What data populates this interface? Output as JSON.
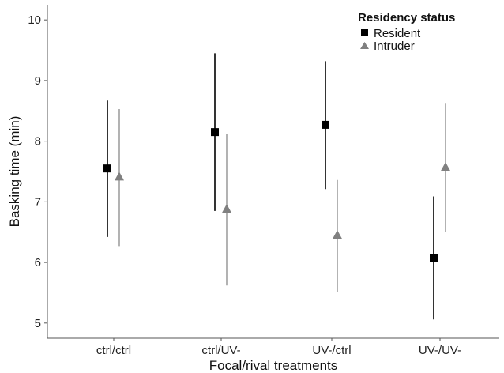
{
  "chart_data": {
    "type": "scatter",
    "xlabel": "Focal/rival treatments",
    "ylabel": "Basking time (min)",
    "categories": [
      "ctrl/ctrl",
      "ctrl/UV-",
      "UV-/ctrl",
      "UV-/UV-"
    ],
    "ylim": [
      4.75,
      10.25
    ],
    "yticks": [
      5,
      6,
      7,
      8,
      9,
      10
    ],
    "grid": false,
    "legend": {
      "title": "Residency status",
      "position": "top-right"
    },
    "series": [
      {
        "name": "Resident",
        "marker": "square",
        "color": "#000000",
        "values": [
          7.55,
          8.15,
          8.27,
          6.07
        ],
        "lower": [
          6.42,
          6.85,
          7.21,
          5.06
        ],
        "upper": [
          8.67,
          9.45,
          9.32,
          7.09
        ]
      },
      {
        "name": "Intruder",
        "marker": "triangle",
        "color": "#808080",
        "values": [
          7.41,
          6.88,
          6.45,
          7.57
        ],
        "lower": [
          6.27,
          5.62,
          5.51,
          6.5
        ],
        "upper": [
          8.53,
          8.12,
          7.36,
          8.63
        ]
      }
    ]
  }
}
